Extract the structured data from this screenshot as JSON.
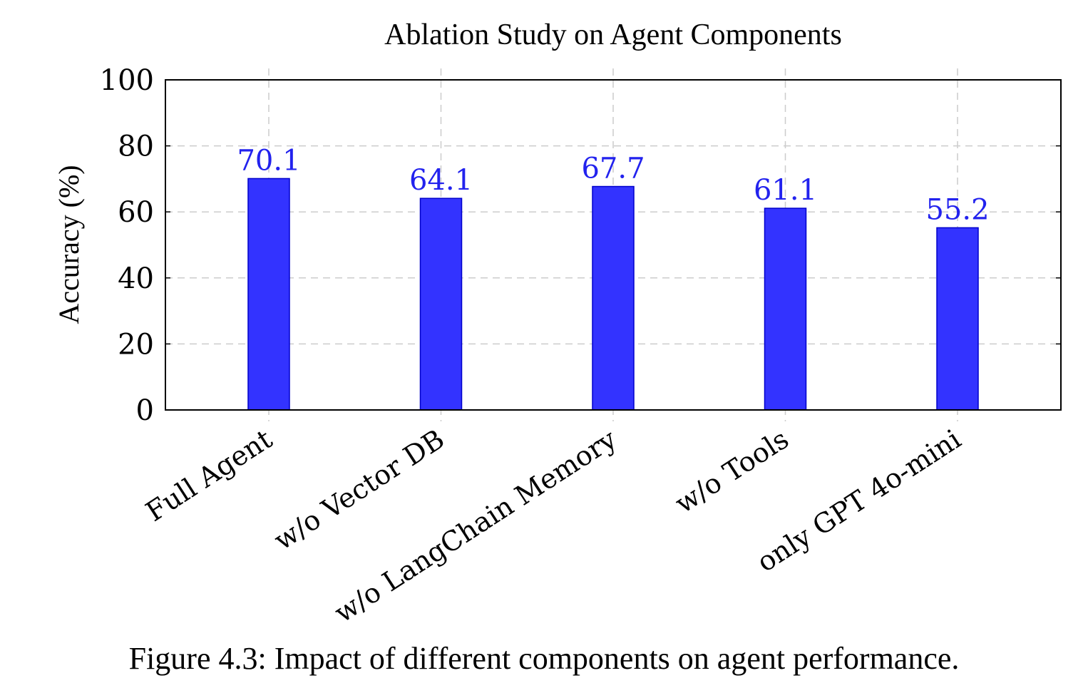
{
  "chart_data": {
    "type": "bar",
    "title": "Ablation Study on Agent Components",
    "xlabel": "",
    "ylabel": "Accuracy (%)",
    "categories": [
      "Full Agent",
      "w/o Vector DB",
      "w/o LangChain Memory",
      "w/o Tools",
      "only GPT 4o-mini"
    ],
    "values": [
      70.1,
      64.1,
      67.7,
      61.1,
      55.2
    ],
    "value_labels": [
      "70.1",
      "64.1",
      "67.7",
      "61.1",
      "55.2"
    ],
    "ylim": [
      0,
      100
    ],
    "yticks": [
      0,
      20,
      40,
      60,
      80,
      100
    ],
    "grid": true,
    "bar_color": "#3333ff",
    "bar_edge_color": "#0000cc",
    "label_color": "#2222ee"
  },
  "caption": "Figure 4.3: Impact of different components on agent performance."
}
